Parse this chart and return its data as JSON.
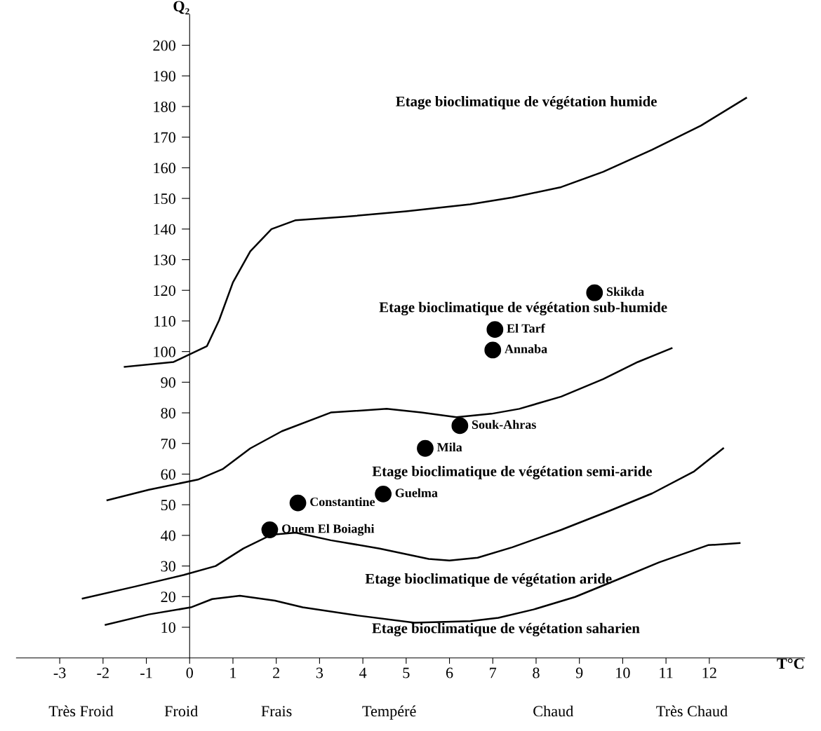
{
  "chart_data": {
    "type": "line",
    "xlabel": "T°C",
    "ylabel": "Q₂",
    "xlim": [
      -4,
      14.2
    ],
    "xticks": [
      -3,
      -2,
      -1,
      0,
      1,
      2,
      3,
      4,
      5,
      6,
      7,
      8,
      9,
      10,
      11,
      12
    ],
    "ylim": [
      0,
      210
    ],
    "yticks": [
      10,
      20,
      30,
      40,
      50,
      60,
      70,
      80,
      90,
      100,
      110,
      120,
      130,
      140,
      150,
      160,
      170,
      180,
      190,
      200
    ],
    "grid": false,
    "legend": false,
    "series": [
      {
        "color": "#000000",
        "x": [
          -1.5,
          -0.37,
          0.4,
          0.68,
          1.0,
          1.4,
          1.89,
          2.45,
          3.58,
          5.0,
          6.48,
          7.45,
          8.58,
          9.55,
          10.68,
          11.81,
          12.85
        ],
        "values": [
          95.0,
          96.6,
          101.8,
          110.2,
          122.6,
          132.7,
          140.0,
          142.9,
          144.0,
          145.8,
          148.1,
          150.3,
          153.7,
          158.7,
          165.9,
          173.8,
          182.8
        ]
      },
      {
        "color": "#000000",
        "x": [
          -1.9,
          -0.94,
          0.19,
          0.76,
          1.4,
          2.13,
          3.26,
          4.55,
          5.35,
          6.16,
          6.97,
          7.61,
          8.58,
          9.55,
          10.35,
          11.13
        ],
        "values": [
          51.5,
          54.9,
          58.2,
          61.6,
          68.4,
          74.0,
          80.1,
          81.3,
          80.1,
          78.6,
          79.7,
          81.3,
          85.3,
          91.0,
          96.6,
          101.1
        ]
      },
      {
        "color": "#000000",
        "x": [
          -2.47,
          -1.26,
          -0.13,
          0.6,
          1.24,
          1.89,
          2.45,
          3.26,
          4.39,
          5.52,
          6.0,
          6.65,
          7.45,
          8.58,
          9.71,
          10.68,
          11.65,
          12.32
        ],
        "values": [
          19.4,
          23.3,
          27.1,
          30.0,
          35.7,
          40.2,
          40.9,
          38.4,
          35.7,
          32.3,
          31.8,
          32.7,
          36.1,
          41.8,
          48.1,
          53.7,
          60.9,
          68.4
        ]
      },
      {
        "color": "#000000",
        "x": [
          -1.94,
          -0.94,
          0.03,
          0.52,
          1.16,
          1.97,
          2.61,
          3.9,
          5.19,
          6.48,
          7.13,
          7.94,
          8.9,
          9.87,
          10.84,
          11.97,
          12.7
        ],
        "values": [
          10.8,
          14.2,
          16.5,
          19.2,
          20.3,
          18.7,
          16.5,
          13.8,
          11.5,
          12.0,
          13.1,
          15.8,
          19.9,
          25.5,
          31.2,
          36.8,
          37.5
        ]
      },
      {
        "type": "scatter",
        "color": "#000000",
        "marker": "circle",
        "x": [
          9.35,
          7.05,
          7.0,
          6.24,
          5.44,
          4.47,
          2.5,
          1.85
        ],
        "values": [
          119.2,
          107.2,
          100.5,
          75.8,
          68.4,
          53.5,
          50.6,
          41.8
        ],
        "value_labels": [
          "Skikda",
          "El Tarf",
          "Annaba",
          "Souk-Ahras",
          "Mila",
          "Guelma",
          "Constantine",
          "Ouem El Boiaghi"
        ]
      }
    ],
    "annotations": [
      "Etage bioclimatique de végétation humide",
      "Etage bioclimatique de végétation sub-humide",
      "Etage bioclimatique de végétation semi-aride",
      "Etage bioclimatique de végétation aride",
      "Etage bioclimatique de végétation saharien",
      "Très Froid",
      "Froid",
      "Frais",
      "Tempéré",
      "Chaud",
      "Très Chaud"
    ]
  }
}
